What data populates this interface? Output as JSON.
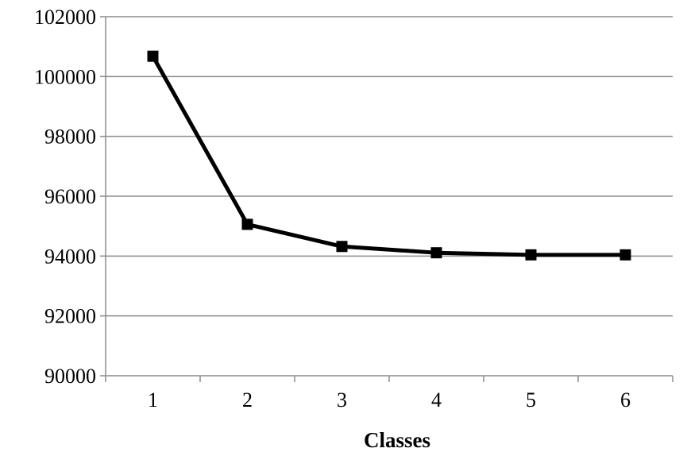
{
  "chart_data": {
    "type": "line",
    "title": "",
    "xlabel": "Classes",
    "ylabel": "",
    "categories": [
      "1",
      "2",
      "3",
      "4",
      "5",
      "6"
    ],
    "series": [
      {
        "values": [
          100680,
          95060,
          94320,
          94110,
          94040,
          94040
        ],
        "color": "#000000",
        "marker": "square"
      }
    ],
    "ylim": [
      90000,
      102000
    ],
    "yticks": [
      "90000",
      "92000",
      "94000",
      "96000",
      "98000",
      "100000",
      "102000"
    ],
    "grid": true,
    "legend": "none",
    "colors": {
      "line": "#000000",
      "grid": "#8c8c8c",
      "axis": "#8c8c8c"
    }
  }
}
